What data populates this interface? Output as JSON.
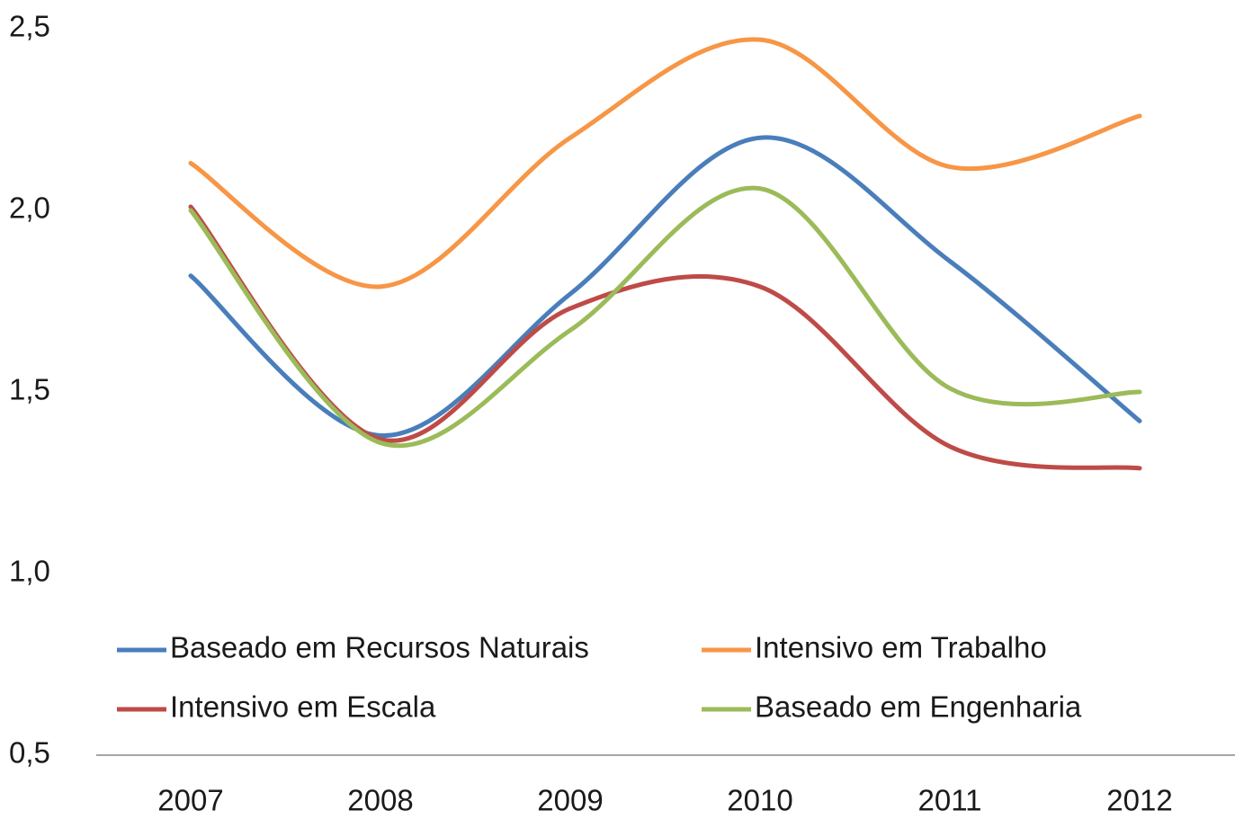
{
  "chart_data": {
    "type": "line",
    "categories": [
      "2007",
      "2008",
      "2009",
      "2010",
      "2011",
      "2012"
    ],
    "series": [
      {
        "name": "Baseado em Recursos Naturais",
        "color": "#4a7ebb",
        "values": [
          1.82,
          1.38,
          1.77,
          2.2,
          1.86,
          1.42
        ]
      },
      {
        "name": "Intensivo em Trabalho",
        "color": "#f79646",
        "values": [
          2.13,
          1.79,
          2.2,
          2.47,
          2.12,
          2.26
        ]
      },
      {
        "name": "Intensivo em Escala",
        "color": "#be4b48",
        "values": [
          2.01,
          1.37,
          1.73,
          1.79,
          1.35,
          1.29
        ]
      },
      {
        "name": "Baseado em Engenharia",
        "color": "#9bbb59",
        "values": [
          2.0,
          1.36,
          1.67,
          2.06,
          1.51,
          1.5
        ]
      }
    ],
    "ylim": [
      0.5,
      2.5
    ],
    "yticks": [
      {
        "value": 0.5,
        "label": "0,5"
      },
      {
        "value": 1.0,
        "label": "1,0"
      },
      {
        "value": 1.5,
        "label": "1,5"
      },
      {
        "value": 2.0,
        "label": "2,0"
      },
      {
        "value": 2.5,
        "label": "2,5"
      }
    ],
    "legend": "bottom",
    "smooth": true
  }
}
